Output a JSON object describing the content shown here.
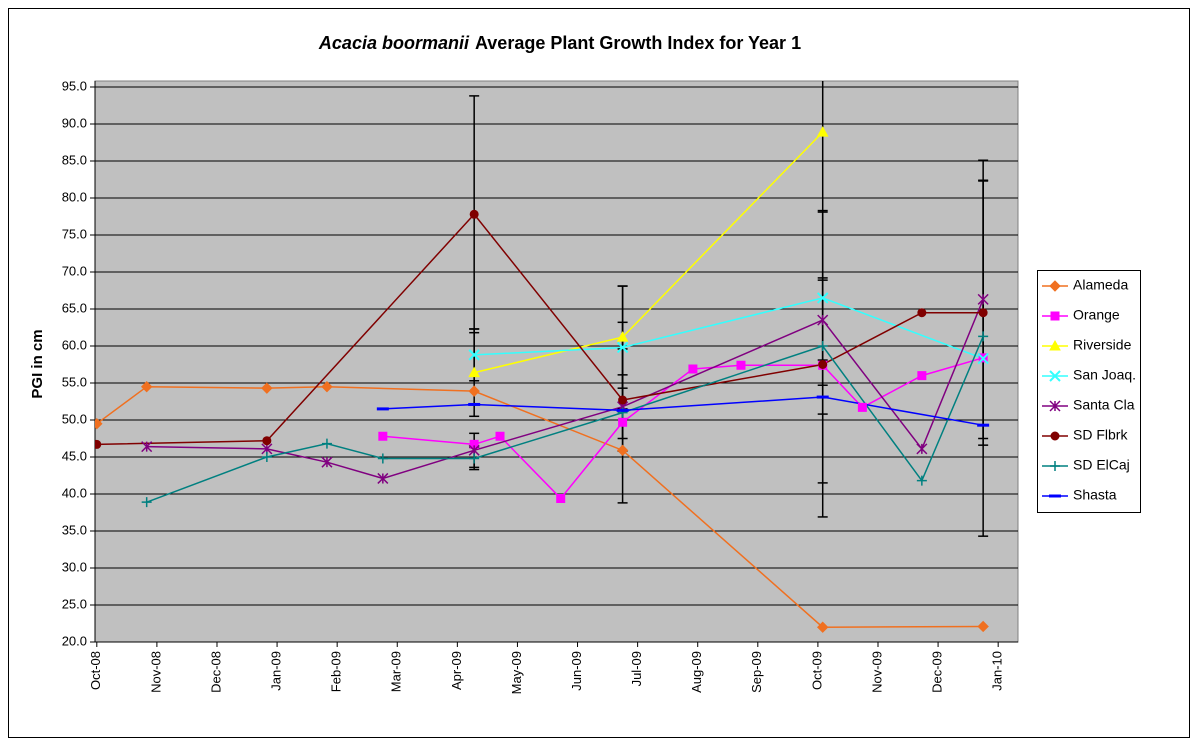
{
  "chart_data": {
    "type": "line",
    "title": {
      "species": "Acacia boormanii",
      "text": "Average Plant Growth Index for Year 1"
    },
    "y_label": "PGI in cm",
    "xlim": [
      -0.03,
      15.33
    ],
    "ylim": [
      20,
      95
    ],
    "xticks": [
      {
        "value": 0,
        "label": "Oct-08"
      },
      {
        "value": 1,
        "label": "Nov-08"
      },
      {
        "value": 2,
        "label": "Dec-08"
      },
      {
        "value": 3,
        "label": "Jan-09"
      },
      {
        "value": 4,
        "label": "Feb-09"
      },
      {
        "value": 5,
        "label": "Mar-09"
      },
      {
        "value": 6,
        "label": "Apr-09"
      },
      {
        "value": 7,
        "label": "May-09"
      },
      {
        "value": 8,
        "label": "Jun-09"
      },
      {
        "value": 9,
        "label": "Jul-09"
      },
      {
        "value": 10,
        "label": "Aug-09"
      },
      {
        "value": 11,
        "label": "Sep-09"
      },
      {
        "value": 12,
        "label": "Oct-09"
      },
      {
        "value": 13,
        "label": "Nov-09"
      },
      {
        "value": 14,
        "label": "Dec-09"
      },
      {
        "value": 15,
        "label": "Jan-10"
      }
    ],
    "yticks": [
      {
        "value": 20,
        "label": "20.0"
      },
      {
        "value": 25,
        "label": "25.0"
      },
      {
        "value": 30,
        "label": "30.0"
      },
      {
        "value": 35,
        "label": "35.0"
      },
      {
        "value": 40,
        "label": "40.0"
      },
      {
        "value": 45,
        "label": "45.0"
      },
      {
        "value": 50,
        "label": "50.0"
      },
      {
        "value": 55,
        "label": "55.0"
      },
      {
        "value": 60,
        "label": "60.0"
      },
      {
        "value": 65,
        "label": "65.0"
      },
      {
        "value": 70,
        "label": "70.0"
      },
      {
        "value": 75,
        "label": "75.0"
      },
      {
        "value": 80,
        "label": "80.0"
      },
      {
        "value": 85,
        "label": "85.0"
      },
      {
        "value": 90,
        "label": "90.0"
      },
      {
        "value": 95,
        "label": "95.0"
      }
    ],
    "grid": true,
    "plot_background": "#c0c0c0",
    "error_color": "#000000",
    "legend": "right",
    "series": [
      {
        "name": "Alameda",
        "color": "#f07020",
        "marker": "diamond",
        "x": [
          0,
          0.83,
          2.83,
          3.83,
          6.28,
          8.75,
          12.08,
          14.75
        ],
        "values": [
          49.5,
          54.5,
          54.3,
          54.5,
          53.9,
          45.9,
          22.0,
          22.1
        ]
      },
      {
        "name": "Orange",
        "color": "#ff00ff",
        "marker": "square",
        "x": [
          4.76,
          6.28,
          6.71,
          7.72,
          8.75,
          9.92,
          10.72,
          12.08,
          12.74,
          13.73,
          14.75
        ],
        "values": [
          47.8,
          46.7,
          47.8,
          39.4,
          49.7,
          56.9,
          57.4,
          57.4,
          51.7,
          56.0,
          58.4
        ]
      },
      {
        "name": "Riverside",
        "color": "#ffff00",
        "marker": "triangle",
        "x": [
          6.28,
          8.75,
          12.08
        ],
        "values": [
          56.4,
          61.2,
          88.9
        ],
        "errors": [
          5.9,
          6.9,
          47.4
        ]
      },
      {
        "name": "San Joaq.",
        "color": "#33ffff",
        "marker": "x",
        "x": [
          6.28,
          8.75,
          12.08,
          14.75
        ],
        "values": [
          58.8,
          59.8,
          66.5,
          58.3
        ],
        "errors": [
          3.5,
          8.3,
          11.8,
          24.0
        ]
      },
      {
        "name": "Santa Cla",
        "color": "#800080",
        "marker": "star",
        "x": [
          0.83,
          2.83,
          3.83,
          4.76,
          6.28,
          8.75,
          12.08,
          13.73,
          14.75
        ],
        "values": [
          46.4,
          46.1,
          44.3,
          42.1,
          45.9,
          51.8,
          63.5,
          46.1,
          66.3
        ],
        "errors": [
          null,
          null,
          null,
          null,
          2.3,
          4.3,
          5.4,
          null,
          18.8
        ]
      },
      {
        "name": "SD Flbrk",
        "color": "#800000",
        "marker": "circle",
        "x": [
          0,
          2.83,
          6.28,
          8.75,
          12.08,
          13.73,
          14.75
        ],
        "values": [
          46.7,
          47.2,
          77.8,
          52.7,
          57.5,
          64.5,
          64.5
        ],
        "errors": [
          null,
          null,
          16.0,
          6.9,
          20.6,
          null,
          17.9
        ]
      },
      {
        "name": "SD ElCaj",
        "color": "#008080",
        "marker": "plus",
        "x": [
          0.83,
          2.83,
          3.83,
          4.76,
          6.28,
          8.75,
          12.08,
          13.73,
          14.75
        ],
        "values": [
          38.9,
          45.0,
          46.8,
          44.8,
          44.8,
          51.0,
          60.0,
          41.8,
          61.3
        ],
        "errors": [
          null,
          null,
          null,
          null,
          1.5,
          12.2,
          9.2,
          null,
          null
        ]
      },
      {
        "name": "Shasta",
        "color": "#0000ff",
        "marker": "dash",
        "x": [
          4.76,
          6.28,
          8.75,
          12.08,
          14.75
        ],
        "values": [
          51.5,
          52.1,
          51.3,
          53.1,
          49.3
        ]
      }
    ]
  }
}
